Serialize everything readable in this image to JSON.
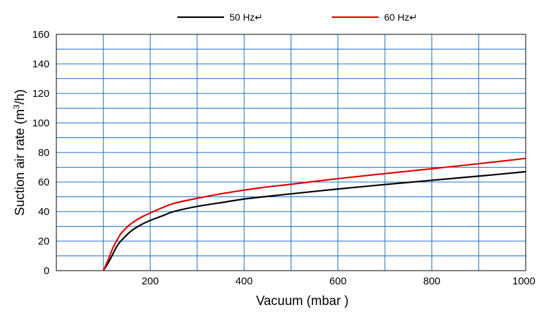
{
  "chart_data": {
    "type": "line",
    "title": "",
    "xlabel": "Vacuum (mbar )",
    "ylabel_main": "Suction air rate (m",
    "ylabel_sup": "3",
    "ylabel_end": "/h)",
    "xlim": [
      0,
      1000
    ],
    "ylim": [
      0,
      160
    ],
    "x_ticks": [
      200,
      400,
      600,
      800,
      1000
    ],
    "x_tick_labels": [
      "200",
      "400",
      "600",
      "800",
      "1000"
    ],
    "y_ticks": [
      0,
      20,
      40,
      60,
      80,
      100,
      120,
      140,
      160
    ],
    "y_tick_labels": [
      "0",
      "20",
      "40",
      "60",
      "80",
      "100",
      "120",
      "140",
      "160"
    ],
    "grid": true,
    "grid_color": "#1a6fc4",
    "legend_position": "top",
    "series": [
      {
        "name": "50 Hz",
        "legend_label": "50 Hz↵",
        "color": "#000000",
        "x": [
          100,
          110,
          120,
          130,
          140,
          160,
          180,
          200,
          225,
          250,
          300,
          350,
          400,
          450,
          500,
          600,
          700,
          800,
          900,
          1000
        ],
        "y": [
          0,
          5,
          11,
          17,
          21,
          27,
          31,
          34,
          37,
          40,
          43.5,
          46,
          48.5,
          50.3,
          52,
          55.3,
          58.3,
          61.2,
          64,
          67
        ]
      },
      {
        "name": "60 Hz",
        "legend_label": "60 Hz↵",
        "color": "#e00000",
        "x": [
          100,
          110,
          120,
          130,
          140,
          160,
          180,
          200,
          225,
          250,
          300,
          350,
          400,
          450,
          500,
          600,
          700,
          800,
          900,
          1000
        ],
        "y": [
          0,
          7,
          15,
          21,
          26,
          32,
          36,
          39,
          42.5,
          45.5,
          49,
          52,
          54.5,
          56.7,
          58.5,
          62.3,
          65.7,
          69,
          72.4,
          76
        ]
      }
    ]
  }
}
